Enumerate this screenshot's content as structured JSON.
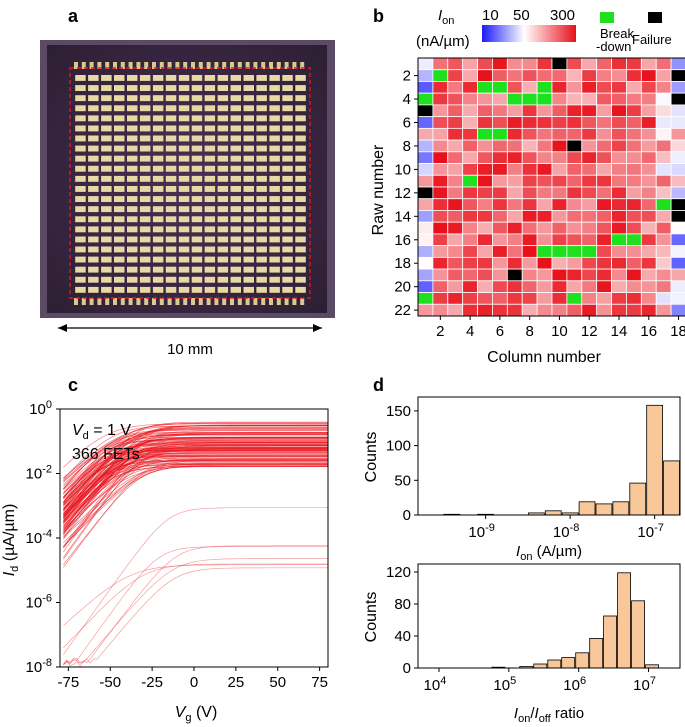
{
  "panels": {
    "a": {
      "label": "a",
      "scale_text": "10 mm"
    },
    "b": {
      "label": "b",
      "legend_title_main": "I",
      "legend_title_sub": "on",
      "legend_units": "(nA/µm)",
      "colorbar_ticks": [
        "10",
        "50",
        "300"
      ],
      "breakdown_label_1": "Break",
      "breakdown_label_2": "-down",
      "failure_label": "Failure",
      "ylabel": "Raw number",
      "xlabel": "Column number",
      "colors": {
        "breakdown": "#1ee01e",
        "failure": "#000000",
        "low": "#1a1aff",
        "mid": "#ffffff",
        "high": "#e8101a"
      }
    },
    "c": {
      "label": "c",
      "annotation_vd_var": "V",
      "annotation_vd_sub": "d",
      "annotation_vd_rest": " = 1 V",
      "annotation_count": "366 FETs",
      "xlabel_var": "V",
      "xlabel_sub": "g",
      "xlabel_unit": " (V)",
      "ylabel_var": "I",
      "ylabel_sub": "d",
      "ylabel_unit": " (µA/µm)",
      "color": "#e8101a"
    },
    "d": {
      "label": "d",
      "top_xlabel_var": "I",
      "top_xlabel_sub": "on",
      "top_xlabel_unit": " (A/µm)",
      "bottom_xlabel_var1": "I",
      "bottom_xlabel_sub1": "on",
      "bottom_xlabel_mid": "/",
      "bottom_xlabel_var2": "I",
      "bottom_xlabel_sub2": "off",
      "bottom_xlabel_unit": " ratio",
      "ylabel": "Counts",
      "bar_color": "#f8c89a"
    }
  },
  "chart_data": [
    {
      "type": "heatmap",
      "panel": "b",
      "xlabel": "Column number",
      "ylabel": "Raw number",
      "x_ticks": [
        2,
        4,
        6,
        8,
        10,
        12,
        14,
        16,
        18
      ],
      "y_ticks": [
        2,
        4,
        6,
        8,
        10,
        12,
        14,
        16,
        18,
        20,
        22
      ],
      "rows": 22,
      "cols": 18,
      "colorbar_label": "Ion (nA/µm)",
      "colorbar_range": [
        10,
        300
      ],
      "breakdown_cells": [
        [
          2,
          2
        ],
        [
          3,
          5
        ],
        [
          3,
          6
        ],
        [
          3,
          9
        ],
        [
          4,
          1
        ],
        [
          4,
          7
        ],
        [
          4,
          8
        ],
        [
          4,
          9
        ],
        [
          7,
          5
        ],
        [
          7,
          6
        ],
        [
          11,
          4
        ],
        [
          13,
          17
        ],
        [
          14,
          18
        ],
        [
          16,
          14
        ],
        [
          16,
          15
        ],
        [
          17,
          9
        ],
        [
          17,
          10
        ],
        [
          17,
          11
        ],
        [
          17,
          12
        ],
        [
          21,
          1
        ],
        [
          21,
          11
        ]
      ],
      "failure_cells": [
        [
          1,
          10
        ],
        [
          2,
          18
        ],
        [
          4,
          18
        ],
        [
          5,
          1
        ],
        [
          8,
          11
        ],
        [
          12,
          1
        ],
        [
          14,
          18
        ],
        [
          19,
          7
        ],
        [
          13,
          18
        ]
      ]
    },
    {
      "type": "line",
      "panel": "c",
      "xlabel": "Vg (V)",
      "ylabel": "Id (µA/µm)",
      "x_ticks": [
        -75,
        -50,
        -25,
        0,
        25,
        50,
        75
      ],
      "y_ticks": [
        "10^-8",
        "10^-6",
        "10^-4",
        "10^-2",
        "10^0"
      ],
      "xlim": [
        -80,
        80
      ],
      "ylim_log10": [
        -8,
        0
      ],
      "yscale": "log",
      "series_count": 366
    },
    {
      "type": "bar",
      "panel": "d-top",
      "xlabel": "Ion (A/µm)",
      "ylabel": "Counts",
      "xscale": "log",
      "xlim_log10": [
        -9.8,
        -6.7
      ],
      "ylim": [
        0,
        170
      ],
      "y_ticks": [
        0,
        50,
        100,
        150
      ],
      "x_ticks": [
        "10^-9",
        "10^-8",
        "10^-7"
      ],
      "bin_centers_log10": [
        -9.4,
        -9.2,
        -9.0,
        -8.8,
        -8.6,
        -8.4,
        -8.2,
        -8.0,
        -7.8,
        -7.6,
        -7.4,
        -7.2,
        -7.0,
        -6.8
      ],
      "values": [
        1,
        0,
        1,
        0,
        0,
        3,
        6,
        3,
        19,
        16,
        19,
        46,
        158,
        78
      ]
    },
    {
      "type": "bar",
      "panel": "d-bottom",
      "xlabel": "Ion/Ioff ratio",
      "ylabel": "Counts",
      "xscale": "log",
      "xlim_log10": [
        3.7,
        7.45
      ],
      "ylim": [
        0,
        130
      ],
      "y_ticks": [
        0,
        40,
        80,
        120
      ],
      "x_ticks": [
        "10^4",
        "10^5",
        "10^6",
        "10^7"
      ],
      "bin_centers_log10": [
        4.85,
        5.05,
        5.25,
        5.45,
        5.65,
        5.85,
        6.05,
        6.25,
        6.45,
        6.65,
        6.85,
        7.05,
        7.25
      ],
      "values": [
        1,
        0,
        2,
        5,
        10,
        13,
        19,
        37,
        65,
        119,
        84,
        4,
        0
      ]
    }
  ]
}
